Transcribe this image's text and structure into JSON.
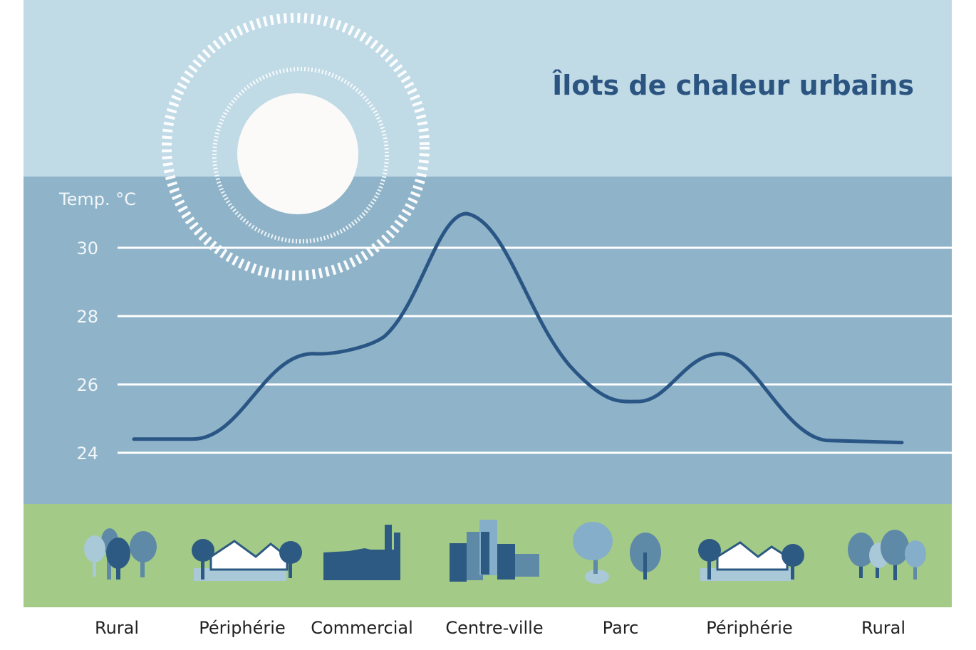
{
  "colors": {
    "sky_top": "#c0dae6",
    "sky_chart": "#8fb3c8",
    "ground": "#a3ca86",
    "grid": "#ffffff",
    "curve": "#2a5685",
    "title": "#2b5580",
    "icon_dark": "#2d5a82",
    "icon_mid": "#5e8aa8",
    "icon_light": "#a9c8d8"
  },
  "chart_data": {
    "type": "line",
    "title": "Îlots de chaleur urbains",
    "ylabel": "Temp. °C",
    "xlabel": "",
    "ylim": [
      24,
      30
    ],
    "yticks": [
      "30",
      "28",
      "26",
      "24"
    ],
    "ytick_values": [
      30,
      28,
      26,
      24
    ],
    "grid": true,
    "categories": [
      "Rural",
      "Périphérie",
      "Commercial",
      "Centre-ville",
      "Parc",
      "Périphérie",
      "Rural"
    ],
    "series": [
      {
        "values": [
          24.4,
          26.9,
          27.1,
          31.0,
          25.5,
          26.9,
          24.3
        ]
      }
    ]
  },
  "icons": [
    "trees-icon",
    "houses-icon",
    "factory-icon",
    "buildings-icon",
    "park-trees-icon",
    "houses-icon",
    "trees-icon"
  ]
}
